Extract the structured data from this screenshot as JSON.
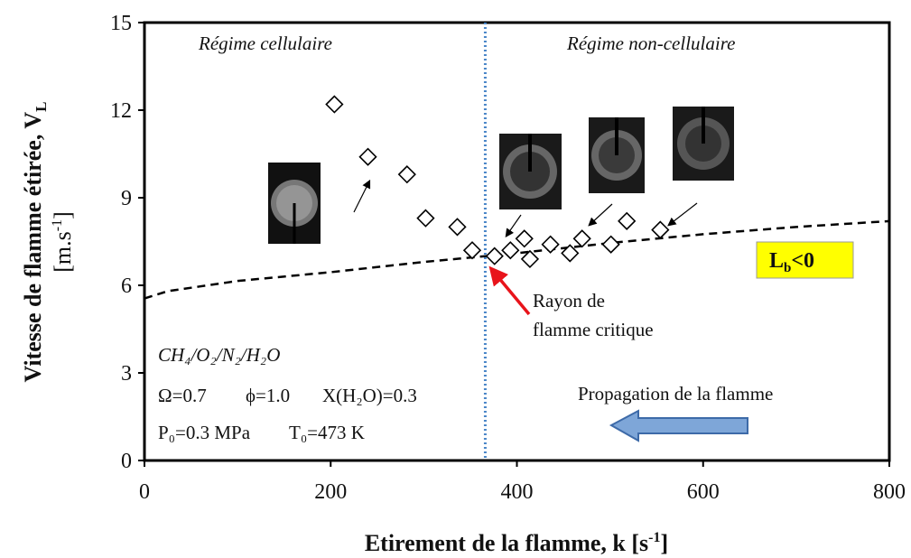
{
  "chart_data": {
    "type": "scatter",
    "x_label": {
      "text": "Etirement de la flamme, k [s",
      "sup": "-1",
      "end": "]"
    },
    "y_label": {
      "line1": "Vitesse de flamme étirée, V",
      "sub": "L",
      "line2": "[m.s",
      "sup": "-1",
      "end": "]"
    },
    "xlim": [
      0,
      800
    ],
    "ylim": [
      0,
      15
    ],
    "xticks": [
      0,
      200,
      400,
      600,
      800
    ],
    "yticks": [
      0,
      3,
      6,
      9,
      12,
      15
    ],
    "x": [
      204,
      240,
      282,
      302,
      336,
      352,
      376,
      393,
      408,
      414,
      436,
      457,
      470,
      501,
      518,
      554
    ],
    "y": [
      12.2,
      10.4,
      9.8,
      8.3,
      8.0,
      7.2,
      7.0,
      7.2,
      7.6,
      6.9,
      7.4,
      7.1,
      7.6,
      7.4,
      8.2,
      7.9
    ],
    "marker_color": "#000000",
    "curve": {
      "x": [
        0,
        25,
        100,
        200,
        300,
        400,
        500,
        600,
        700,
        800
      ],
      "y": [
        5.55,
        5.8,
        6.15,
        6.45,
        6.8,
        7.1,
        7.45,
        7.75,
        8.0,
        8.2
      ],
      "color": "#000000"
    },
    "critical_x": 366,
    "critical_color": "#4a86c8",
    "annotations": {
      "regime_cell": "Régime cellulaire",
      "regime_noncell": "Régime non-cellulaire",
      "rayon1": "Rayon de",
      "rayon2": "flamme critique",
      "lb": {
        "main": "L",
        "sub": "b",
        "rest": "<0"
      },
      "mixture": "CH₄/O₂/N₂/H₂O",
      "omega": "Ω=0.7",
      "phi": "ϕ=1.0",
      "xh2o": "X(H₂O)=0.3",
      "p0": "P₀=0.3 MPa",
      "t0": "T₀=473 K",
      "propagation": "Propagation de la flamme"
    }
  }
}
